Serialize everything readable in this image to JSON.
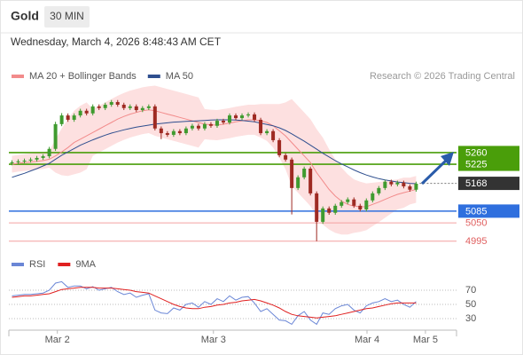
{
  "header": {
    "title": "Gold",
    "timeframe": "30 MIN",
    "timestamp": "Wednesday, March 4, 2026 8:48:43 AM CET"
  },
  "chart_data": [
    {
      "type": "candlestick",
      "source": "Research © 2026 Trading Central",
      "xlim": [
        -0.5,
        71.5
      ],
      "xticks": [
        {
          "value": 7.3,
          "label": "Mar 2"
        },
        {
          "value": 32.4,
          "label": "Mar 3"
        },
        {
          "value": 57.1,
          "label": "Mar 4"
        },
        {
          "value": 66.5,
          "label": "Mar 5"
        }
      ],
      "ylim": [
        4960,
        5464
      ],
      "up_color": "#3f9b2f",
      "down_color": "#9e2a22",
      "open": [
        5228,
        5231,
        5234,
        5236,
        5239,
        5244,
        5249,
        5271,
        5345,
        5371,
        5358,
        5371,
        5385,
        5377,
        5398,
        5393,
        5403,
        5411,
        5403,
        5393,
        5398,
        5387,
        5393,
        5398,
        5332,
        5318,
        5313,
        5324,
        5318,
        5332,
        5340,
        5332,
        5345,
        5340,
        5355,
        5350,
        5371,
        5363,
        5371,
        5374,
        5358,
        5318,
        5324,
        5297,
        5252,
        5239,
        5154,
        5186,
        5212,
        5138,
        5053,
        5093,
        5080,
        5101,
        5112,
        5120,
        5101,
        5090,
        5117,
        5138,
        5154,
        5173,
        5165,
        5170,
        5159,
        5149
      ],
      "high": [
        5237,
        5240,
        5242,
        5245,
        5250,
        5255,
        5277,
        5352,
        5378,
        5377,
        5377,
        5391,
        5391,
        5404,
        5404,
        5409,
        5417,
        5417,
        5409,
        5404,
        5404,
        5399,
        5404,
        5404,
        5338,
        5324,
        5330,
        5330,
        5338,
        5346,
        5346,
        5351,
        5351,
        5361,
        5361,
        5377,
        5377,
        5377,
        5380,
        5380,
        5364,
        5330,
        5330,
        5303,
        5258,
        5245,
        5192,
        5218,
        5218,
        5144,
        5099,
        5099,
        5107,
        5118,
        5126,
        5126,
        5107,
        5123,
        5144,
        5160,
        5179,
        5179,
        5176,
        5176,
        5165,
        5173
      ],
      "low": [
        5222,
        5225,
        5228,
        5230,
        5233,
        5238,
        5243,
        5265,
        5339,
        5352,
        5352,
        5365,
        5371,
        5371,
        5387,
        5387,
        5397,
        5397,
        5387,
        5387,
        5381,
        5381,
        5387,
        5326,
        5300,
        5307,
        5307,
        5312,
        5312,
        5326,
        5326,
        5326,
        5334,
        5334,
        5344,
        5344,
        5357,
        5357,
        5365,
        5352,
        5312,
        5312,
        5291,
        5246,
        5233,
        5075,
        5148,
        5180,
        5132,
        4995,
        5047,
        5074,
        5074,
        5095,
        5106,
        5095,
        5084,
        5084,
        5111,
        5132,
        5148,
        5159,
        5159,
        5153,
        5143,
        5143
      ],
      "close": [
        5231,
        5234,
        5236,
        5239,
        5244,
        5249,
        5271,
        5345,
        5371,
        5358,
        5371,
        5385,
        5377,
        5398,
        5393,
        5403,
        5411,
        5403,
        5393,
        5398,
        5387,
        5393,
        5398,
        5332,
        5318,
        5313,
        5324,
        5318,
        5332,
        5340,
        5332,
        5345,
        5340,
        5355,
        5350,
        5371,
        5363,
        5371,
        5374,
        5358,
        5318,
        5324,
        5297,
        5252,
        5239,
        5154,
        5186,
        5212,
        5138,
        5053,
        5093,
        5080,
        5101,
        5112,
        5120,
        5101,
        5090,
        5117,
        5138,
        5154,
        5173,
        5165,
        5170,
        5159,
        5149,
        5167
      ],
      "series": [
        {
          "name": "MA 20 + Bollinger Bands",
          "color": "#f28b8b",
          "band_color": "#fde0e0",
          "values": [
            5225,
            5228,
            5230,
            5232,
            5234,
            5236,
            5240,
            5250,
            5262,
            5275,
            5290,
            5300,
            5310,
            5320,
            5330,
            5340,
            5350,
            5360,
            5368,
            5375,
            5380,
            5385,
            5388,
            5385,
            5380,
            5375,
            5370,
            5365,
            5360,
            5355,
            5350,
            5345,
            5343,
            5342,
            5345,
            5348,
            5352,
            5355,
            5358,
            5358,
            5355,
            5350,
            5340,
            5325,
            5310,
            5290,
            5270,
            5250,
            5230,
            5200,
            5175,
            5150,
            5130,
            5115,
            5105,
            5100,
            5098,
            5098,
            5105,
            5112,
            5120,
            5128,
            5135,
            5140,
            5145,
            5150
          ],
          "upper": [
            5250,
            5253,
            5255,
            5257,
            5259,
            5261,
            5265,
            5300,
            5332,
            5360,
            5385,
            5400,
            5410,
            5390,
            5400,
            5410,
            5420,
            5430,
            5438,
            5445,
            5450,
            5455,
            5458,
            5460,
            5455,
            5450,
            5445,
            5440,
            5435,
            5430,
            5425,
            5390,
            5388,
            5387,
            5390,
            5393,
            5397,
            5400,
            5403,
            5403,
            5405,
            5405,
            5405,
            5405,
            5410,
            5420,
            5400,
            5380,
            5360,
            5330,
            5305,
            5270,
            5240,
            5215,
            5195,
            5180,
            5173,
            5168,
            5170,
            5172,
            5175,
            5178,
            5180,
            5185,
            5185,
            5190
          ],
          "lower": [
            5200,
            5203,
            5205,
            5207,
            5209,
            5211,
            5215,
            5200,
            5192,
            5190,
            5195,
            5200,
            5210,
            5250,
            5260,
            5270,
            5280,
            5290,
            5298,
            5305,
            5310,
            5315,
            5318,
            5310,
            5305,
            5300,
            5295,
            5290,
            5285,
            5280,
            5275,
            5300,
            5298,
            5297,
            5300,
            5303,
            5307,
            5310,
            5313,
            5313,
            5305,
            5295,
            5275,
            5245,
            5210,
            5160,
            5140,
            5120,
            5100,
            5070,
            5045,
            5030,
            5020,
            5015,
            5015,
            5020,
            5023,
            5028,
            5040,
            5052,
            5065,
            5078,
            5090,
            5095,
            5105,
            5110
          ]
        },
        {
          "name": "MA 50",
          "color": "#2f4f8f",
          "values": [
            5186,
            5192,
            5198,
            5205,
            5212,
            5220,
            5228,
            5240,
            5252,
            5262,
            5272,
            5282,
            5290,
            5298,
            5305,
            5312,
            5318,
            5323,
            5328,
            5332,
            5336,
            5339,
            5342,
            5345,
            5347,
            5349,
            5351,
            5352,
            5353,
            5354,
            5355,
            5356,
            5357,
            5358,
            5358,
            5358,
            5357,
            5356,
            5354,
            5352,
            5348,
            5344,
            5340,
            5334,
            5326,
            5316,
            5305,
            5294,
            5282,
            5270,
            5258,
            5247,
            5236,
            5226,
            5217,
            5208,
            5200,
            5193,
            5187,
            5182,
            5178,
            5175,
            5172,
            5170,
            5168,
            5167
          ]
        }
      ],
      "levels": [
        {
          "value": 5260,
          "color": "#4a9e0a",
          "style": "box"
        },
        {
          "value": 5225,
          "color": "#4a9e0a",
          "style": "box"
        },
        {
          "value": 5168,
          "color": "#333333",
          "style": "box",
          "dotted": true
        },
        {
          "value": 5085,
          "color": "#2f6fde",
          "style": "box"
        },
        {
          "value": 5050,
          "color": "#e06060",
          "style": "text"
        },
        {
          "value": 4995,
          "color": "#e06060",
          "style": "text"
        }
      ]
    },
    {
      "type": "line",
      "ylim": [
        15,
        110
      ],
      "yticks": [
        70,
        50,
        30
      ],
      "series": [
        {
          "name": "RSI",
          "color": "#6a86d6",
          "values": [
            62,
            63,
            64,
            64,
            65,
            66,
            70,
            80,
            82,
            74,
            76,
            76,
            72,
            75,
            70,
            72,
            74,
            68,
            64,
            66,
            60,
            63,
            65,
            42,
            38,
            37,
            45,
            42,
            50,
            52,
            46,
            54,
            50,
            58,
            54,
            62,
            56,
            60,
            61,
            52,
            40,
            44,
            36,
            28,
            27,
            22,
            34,
            40,
            28,
            22,
            38,
            36,
            44,
            48,
            50,
            42,
            38,
            48,
            52,
            54,
            58,
            54,
            56,
            50,
            46,
            54
          ]
        },
        {
          "name": "9MA",
          "color": "#e02020",
          "values": [
            60,
            61,
            62,
            62,
            63,
            64,
            65,
            68,
            71,
            72,
            73,
            74,
            74,
            74,
            73,
            73,
            73,
            72,
            71,
            70,
            68,
            67,
            66,
            62,
            58,
            54,
            50,
            47,
            45,
            44,
            44,
            46,
            47,
            49,
            50,
            52,
            53,
            55,
            56,
            57,
            55,
            52,
            49,
            45,
            40,
            36,
            34,
            33,
            32,
            31,
            32,
            33,
            34,
            36,
            38,
            40,
            42,
            44,
            45,
            47,
            49,
            51,
            52,
            52,
            52,
            52
          ]
        }
      ]
    }
  ]
}
